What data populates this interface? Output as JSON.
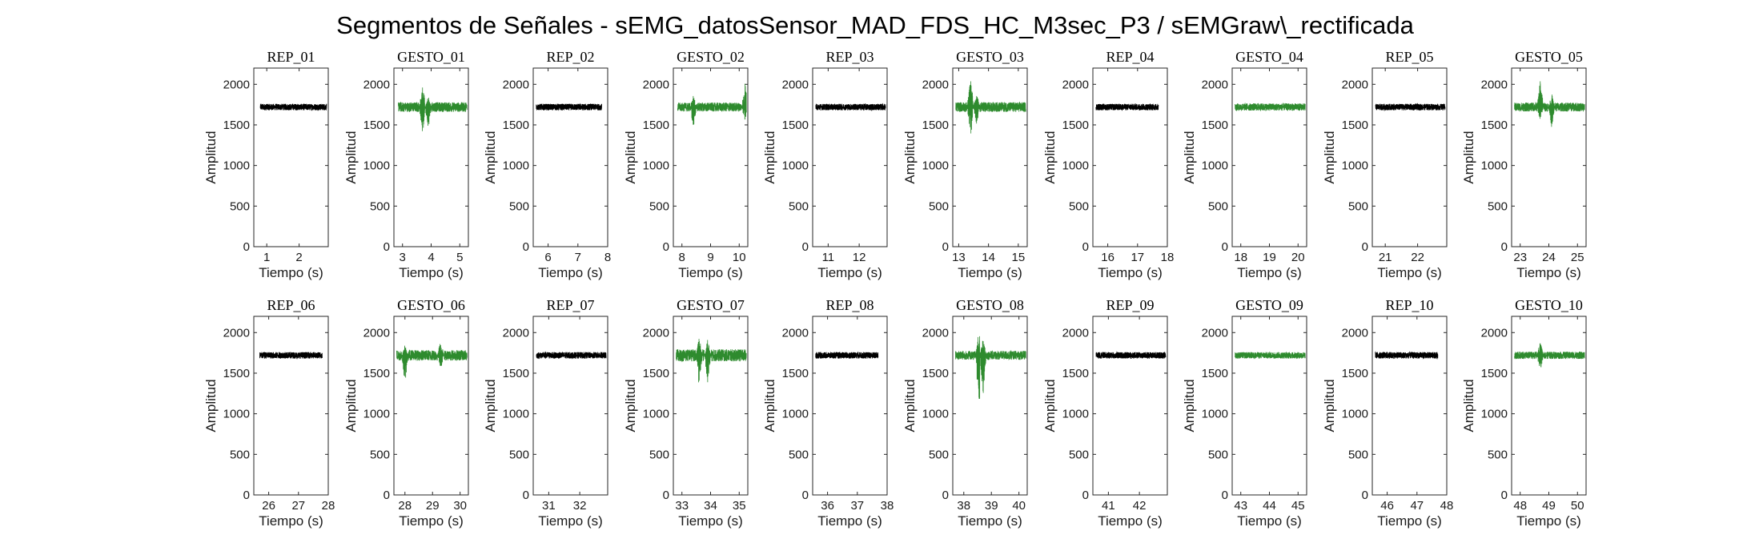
{
  "chart_data": {
    "type": "line",
    "title": "Segmentos de Señales - sEMG_datosSensor_MAD_FDS_HC_M3sec_P3 / sEMGraw\\_rectificada",
    "xlabel": "Tiempo (s)",
    "ylabel": "Amplitud",
    "ylim": [
      0,
      2200
    ],
    "yticks": [
      0,
      500,
      1000,
      1500,
      2000
    ],
    "grid": false,
    "colors": {
      "rep": "#000000",
      "gesto": "#2e8b2e"
    },
    "subplots": [
      {
        "title": "REP_01",
        "kind": "rep",
        "xlim": [
          0.6,
          2.9
        ],
        "data_range": [
          0.8,
          2.85
        ],
        "xticks": [
          1,
          2
        ],
        "baseline": 1720,
        "noise": 40,
        "spikes": []
      },
      {
        "title": "GESTO_01",
        "kind": "gesto",
        "xlim": [
          2.7,
          5.3
        ],
        "data_range": [
          2.85,
          5.25
        ],
        "xticks": [
          3,
          4,
          5
        ],
        "baseline": 1720,
        "noise": 60,
        "spikes": [
          {
            "t": 3.7,
            "max": 2000,
            "min": 1380
          },
          {
            "t": 3.9,
            "max": 1850,
            "min": 1450
          }
        ]
      },
      {
        "title": "REP_02",
        "kind": "rep",
        "xlim": [
          5.5,
          8.0
        ],
        "data_range": [
          5.6,
          7.8
        ],
        "xticks": [
          6,
          7,
          8
        ],
        "baseline": 1720,
        "noise": 40,
        "spikes": []
      },
      {
        "title": "GESTO_02",
        "kind": "gesto",
        "xlim": [
          7.7,
          10.3
        ],
        "data_range": [
          7.85,
          10.25
        ],
        "xticks": [
          8,
          9,
          10
        ],
        "baseline": 1720,
        "noise": 55,
        "spikes": [
          {
            "t": 8.4,
            "max": 1870,
            "min": 1460
          },
          {
            "t": 10.2,
            "max": 2020,
            "min": 1550
          }
        ]
      },
      {
        "title": "REP_03",
        "kind": "rep",
        "xlim": [
          10.5,
          12.9
        ],
        "data_range": [
          10.6,
          12.85
        ],
        "xticks": [
          11,
          12
        ],
        "baseline": 1720,
        "noise": 40,
        "spikes": []
      },
      {
        "title": "GESTO_03",
        "kind": "gesto",
        "xlim": [
          12.8,
          15.3
        ],
        "data_range": [
          12.9,
          15.25
        ],
        "xticks": [
          13,
          14,
          15
        ],
        "baseline": 1720,
        "noise": 60,
        "spikes": [
          {
            "t": 13.4,
            "max": 2110,
            "min": 1340
          },
          {
            "t": 13.6,
            "max": 1900,
            "min": 1500
          }
        ]
      },
      {
        "title": "REP_04",
        "kind": "rep",
        "xlim": [
          15.5,
          18.0
        ],
        "data_range": [
          15.6,
          17.7
        ],
        "xticks": [
          16,
          17,
          18
        ],
        "baseline": 1720,
        "noise": 40,
        "spikes": []
      },
      {
        "title": "GESTO_04",
        "kind": "gesto",
        "xlim": [
          17.7,
          20.3
        ],
        "data_range": [
          17.8,
          20.25
        ],
        "xticks": [
          18,
          19,
          20
        ],
        "baseline": 1720,
        "noise": 45,
        "spikes": []
      },
      {
        "title": "REP_05",
        "kind": "rep",
        "xlim": [
          20.6,
          22.9
        ],
        "data_range": [
          20.7,
          22.85
        ],
        "xticks": [
          21,
          22
        ],
        "baseline": 1720,
        "noise": 40,
        "spikes": []
      },
      {
        "title": "GESTO_05",
        "kind": "gesto",
        "xlim": [
          22.7,
          25.3
        ],
        "data_range": [
          22.8,
          25.25
        ],
        "xticks": [
          23,
          24,
          25
        ],
        "baseline": 1720,
        "noise": 55,
        "spikes": [
          {
            "t": 23.7,
            "max": 2080,
            "min": 1550
          },
          {
            "t": 24.1,
            "max": 1890,
            "min": 1460
          }
        ]
      },
      {
        "title": "REP_06",
        "kind": "rep",
        "xlim": [
          25.5,
          28.0
        ],
        "data_range": [
          25.7,
          27.8
        ],
        "xticks": [
          26,
          27,
          28
        ],
        "baseline": 1720,
        "noise": 40,
        "spikes": []
      },
      {
        "title": "GESTO_06",
        "kind": "gesto",
        "xlim": [
          27.6,
          30.3
        ],
        "data_range": [
          27.7,
          30.25
        ],
        "xticks": [
          28,
          29,
          30
        ],
        "baseline": 1720,
        "noise": 65,
        "spikes": [
          {
            "t": 28.0,
            "max": 1850,
            "min": 1360
          },
          {
            "t": 29.3,
            "max": 1960,
            "min": 1550
          }
        ]
      },
      {
        "title": "REP_07",
        "kind": "rep",
        "xlim": [
          30.5,
          32.9
        ],
        "data_range": [
          30.6,
          32.85
        ],
        "xticks": [
          31,
          32
        ],
        "baseline": 1720,
        "noise": 40,
        "spikes": []
      },
      {
        "title": "GESTO_07",
        "kind": "gesto",
        "xlim": [
          32.7,
          35.3
        ],
        "data_range": [
          32.8,
          35.25
        ],
        "xticks": [
          33,
          34,
          35
        ],
        "baseline": 1720,
        "noise": 75,
        "spikes": [
          {
            "t": 33.6,
            "max": 1950,
            "min": 1320
          },
          {
            "t": 33.9,
            "max": 1920,
            "min": 1380
          }
        ]
      },
      {
        "title": "REP_08",
        "kind": "rep",
        "xlim": [
          35.5,
          38.0
        ],
        "data_range": [
          35.6,
          37.7
        ],
        "xticks": [
          36,
          37,
          38
        ],
        "baseline": 1720,
        "noise": 40,
        "spikes": []
      },
      {
        "title": "GESTO_08",
        "kind": "gesto",
        "xlim": [
          37.6,
          40.3
        ],
        "data_range": [
          37.7,
          40.25
        ],
        "xticks": [
          38,
          39,
          40
        ],
        "baseline": 1720,
        "noise": 55,
        "spikes": [
          {
            "t": 38.55,
            "max": 2030,
            "min": 1000
          },
          {
            "t": 38.7,
            "max": 1950,
            "min": 1200
          }
        ]
      },
      {
        "title": "REP_09",
        "kind": "rep",
        "xlim": [
          40.5,
          42.9
        ],
        "data_range": [
          40.6,
          42.85
        ],
        "xticks": [
          41,
          42
        ],
        "baseline": 1720,
        "noise": 40,
        "spikes": []
      },
      {
        "title": "GESTO_09",
        "kind": "gesto",
        "xlim": [
          42.7,
          45.3
        ],
        "data_range": [
          42.8,
          45.25
        ],
        "xticks": [
          43,
          44,
          45
        ],
        "baseline": 1720,
        "noise": 40,
        "spikes": []
      },
      {
        "title": "REP_10",
        "kind": "rep",
        "xlim": [
          45.5,
          48.0
        ],
        "data_range": [
          45.6,
          47.7
        ],
        "xticks": [
          46,
          47,
          48
        ],
        "baseline": 1720,
        "noise": 40,
        "spikes": []
      },
      {
        "title": "GESTO_10",
        "kind": "gesto",
        "xlim": [
          47.7,
          50.3
        ],
        "data_range": [
          47.8,
          50.25
        ],
        "xticks": [
          48,
          49,
          50
        ],
        "baseline": 1720,
        "noise": 45,
        "spikes": [
          {
            "t": 48.7,
            "max": 1890,
            "min": 1520
          }
        ]
      }
    ]
  }
}
